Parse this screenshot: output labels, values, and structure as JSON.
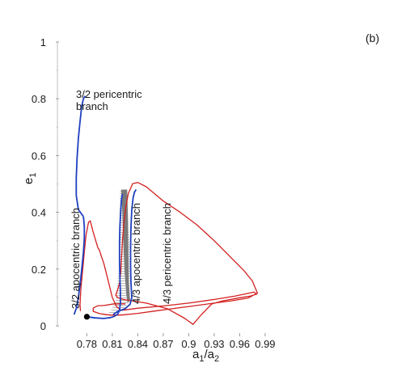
{
  "chart_data": {
    "type": "line",
    "panel_label": "(b)",
    "xlabel": {
      "base": "a",
      "sub1": "1",
      "slash": "/a",
      "sub2": "2"
    },
    "ylabel": {
      "base": "e",
      "sub": "1"
    },
    "xlim": [
      0.762,
      1.0
    ],
    "ylim": [
      0,
      1.0
    ],
    "x_ticks": [
      "0.78",
      "0.81",
      "0.84",
      "0.87",
      "0.9",
      "0.93",
      "0.96",
      "0.99"
    ],
    "y_ticks": [
      "0",
      "0.2",
      "0.4",
      "0.6",
      "0.8",
      "1"
    ],
    "grid": false,
    "annotations": {
      "pericentric_32_line1": "3/2 pericentric",
      "pericentric_32_line2": "branch",
      "apocentric_32": "3/2 apocentric branch",
      "apocentric_43": "4/3 apocentric branch",
      "pericentric_43": "4/3 pericentric branch"
    },
    "colors": {
      "blue": "#1f3fbf",
      "red": "#d42020",
      "gray": "#7a7a7a",
      "hatch": "#a8a8a8"
    },
    "series": [
      {
        "color": "red",
        "points": [
          [
            0.8255,
            0.0775
          ],
          [
            0.812,
            0.0775
          ],
          [
            0.8,
            0.0715
          ],
          [
            0.793,
            0.071
          ],
          [
            0.7875,
            0.063
          ],
          [
            0.7875,
            0.051
          ],
          [
            0.795,
            0.043
          ],
          [
            0.807,
            0.038
          ],
          [
            0.82,
            0.038
          ],
          [
            0.84,
            0.044
          ],
          [
            0.86,
            0.052
          ],
          [
            0.88,
            0.06
          ],
          [
            0.9,
            0.068
          ],
          [
            0.93,
            0.08
          ],
          [
            0.95,
            0.088
          ],
          [
            0.97,
            0.098
          ],
          [
            0.981,
            0.115
          ],
          [
            0.975,
            0.158
          ],
          [
            0.965,
            0.195
          ],
          [
            0.95,
            0.24
          ],
          [
            0.93,
            0.3
          ],
          [
            0.91,
            0.355
          ],
          [
            0.89,
            0.4
          ],
          [
            0.87,
            0.44
          ],
          [
            0.85,
            0.49
          ],
          [
            0.84,
            0.505
          ],
          [
            0.834,
            0.501
          ],
          [
            0.829,
            0.467
          ],
          [
            0.826,
            0.42
          ],
          [
            0.8235,
            0.36
          ],
          [
            0.822,
            0.3
          ],
          [
            0.821,
            0.245
          ],
          [
            0.82,
            0.19
          ],
          [
            0.8185,
            0.15
          ],
          [
            0.816,
            0.125
          ],
          [
            0.814,
            0.108
          ],
          [
            0.816,
            0.1
          ],
          [
            0.823,
            0.093
          ],
          [
            0.833,
            0.088
          ],
          [
            0.85,
            0.08
          ],
          [
            0.875,
            0.06
          ],
          [
            0.895,
            0.027
          ],
          [
            0.905,
            0.005
          ],
          [
            0.915,
            0.04
          ],
          [
            0.927,
            0.077
          ],
          [
            0.94,
            0.088
          ],
          [
            0.96,
            0.099
          ],
          [
            0.973,
            0.105
          ],
          [
            0.98,
            0.112
          ],
          [
            0.977,
            0.119
          ],
          [
            0.955,
            0.105
          ],
          [
            0.93,
            0.093
          ],
          [
            0.9,
            0.08
          ],
          [
            0.87,
            0.07
          ],
          [
            0.84,
            0.062
          ],
          [
            0.825,
            0.056
          ],
          [
            0.82,
            0.055
          ],
          [
            0.815,
            0.068
          ],
          [
            0.81,
            0.1
          ],
          [
            0.805,
            0.16
          ],
          [
            0.8,
            0.22
          ],
          [
            0.796,
            0.255
          ],
          [
            0.795,
            0.265
          ],
          [
            0.793,
            0.275
          ],
          [
            0.79,
            0.305
          ],
          [
            0.787,
            0.335
          ],
          [
            0.784,
            0.37
          ],
          [
            0.782,
            0.365
          ],
          [
            0.779,
            0.32
          ],
          [
            0.777,
            0.26
          ],
          [
            0.775,
            0.195
          ],
          [
            0.773,
            0.13
          ],
          [
            0.772,
            0.075
          ],
          [
            0.7725,
            0.052
          ]
        ]
      },
      {
        "color": "blue",
        "points": [
          [
            0.765,
            0.04
          ],
          [
            0.768,
            0.065
          ],
          [
            0.77,
            0.1
          ],
          [
            0.772,
            0.145
          ],
          [
            0.774,
            0.2
          ],
          [
            0.776,
            0.26
          ],
          [
            0.777,
            0.31
          ],
          [
            0.777,
            0.35
          ],
          [
            0.776,
            0.385
          ]
        ]
      },
      {
        "color": "blue",
        "points": [
          [
            0.776,
            0.385
          ],
          [
            0.77,
            0.41
          ],
          [
            0.7675,
            0.46
          ],
          [
            0.7675,
            0.52
          ],
          [
            0.7685,
            0.59
          ],
          [
            0.77,
            0.66
          ],
          [
            0.772,
            0.72
          ],
          [
            0.774,
            0.775
          ],
          [
            0.776,
            0.8
          ],
          [
            0.778,
            0.81
          ]
        ]
      },
      {
        "color": "blue",
        "points": [
          [
            0.78,
            0.032
          ],
          [
            0.79,
            0.028
          ],
          [
            0.8,
            0.026
          ],
          [
            0.808,
            0.029
          ],
          [
            0.812,
            0.033
          ],
          [
            0.816,
            0.04
          ],
          [
            0.8185,
            0.055
          ],
          [
            0.8195,
            0.08
          ],
          [
            0.8195,
            0.12
          ],
          [
            0.819,
            0.17
          ],
          [
            0.8185,
            0.23
          ],
          [
            0.8185,
            0.29
          ],
          [
            0.819,
            0.35
          ],
          [
            0.82,
            0.41
          ],
          [
            0.821,
            0.45
          ],
          [
            0.822,
            0.465
          ]
        ]
      },
      {
        "color": "blue",
        "points": [
          [
            0.811,
            0.04
          ],
          [
            0.816,
            0.05
          ],
          [
            0.825,
            0.06
          ],
          [
            0.831,
            0.076
          ],
          [
            0.833,
            0.1
          ],
          [
            0.832,
            0.15
          ],
          [
            0.8315,
            0.21
          ],
          [
            0.8315,
            0.28
          ],
          [
            0.832,
            0.35
          ],
          [
            0.833,
            0.41
          ],
          [
            0.8345,
            0.45
          ],
          [
            0.836,
            0.47
          ],
          [
            0.838,
            0.48
          ]
        ]
      }
    ],
    "hatched_region": {
      "color": "hatch",
      "left_edge": [
        [
          0.8005,
          0.037
        ],
        [
          0.808,
          0.05
        ],
        [
          0.814,
          0.09
        ],
        [
          0.8175,
          0.2
        ],
        [
          0.818,
          0.35
        ],
        [
          0.819,
          0.478
        ]
      ],
      "right_edge": [
        [
          0.824,
          0.478
        ],
        [
          0.827,
          0.42
        ],
        [
          0.83,
          0.3
        ],
        [
          0.831,
          0.18
        ],
        [
          0.83,
          0.09
        ],
        [
          0.823,
          0.053
        ],
        [
          0.812,
          0.04
        ]
      ]
    },
    "gray_band": {
      "color": "gray",
      "left_edge": [
        [
          0.8205,
          0.48
        ],
        [
          0.8215,
          0.42
        ],
        [
          0.823,
          0.3
        ],
        [
          0.8245,
          0.19
        ],
        [
          0.8265,
          0.11
        ],
        [
          0.828,
          0.08
        ]
      ],
      "right_edge": [
        [
          0.831,
          0.09
        ],
        [
          0.8295,
          0.15
        ],
        [
          0.829,
          0.26
        ],
        [
          0.8285,
          0.38
        ],
        [
          0.8275,
          0.48
        ]
      ]
    },
    "marker": {
      "x": 0.78,
      "y": 0.032,
      "color": "#000000"
    }
  }
}
